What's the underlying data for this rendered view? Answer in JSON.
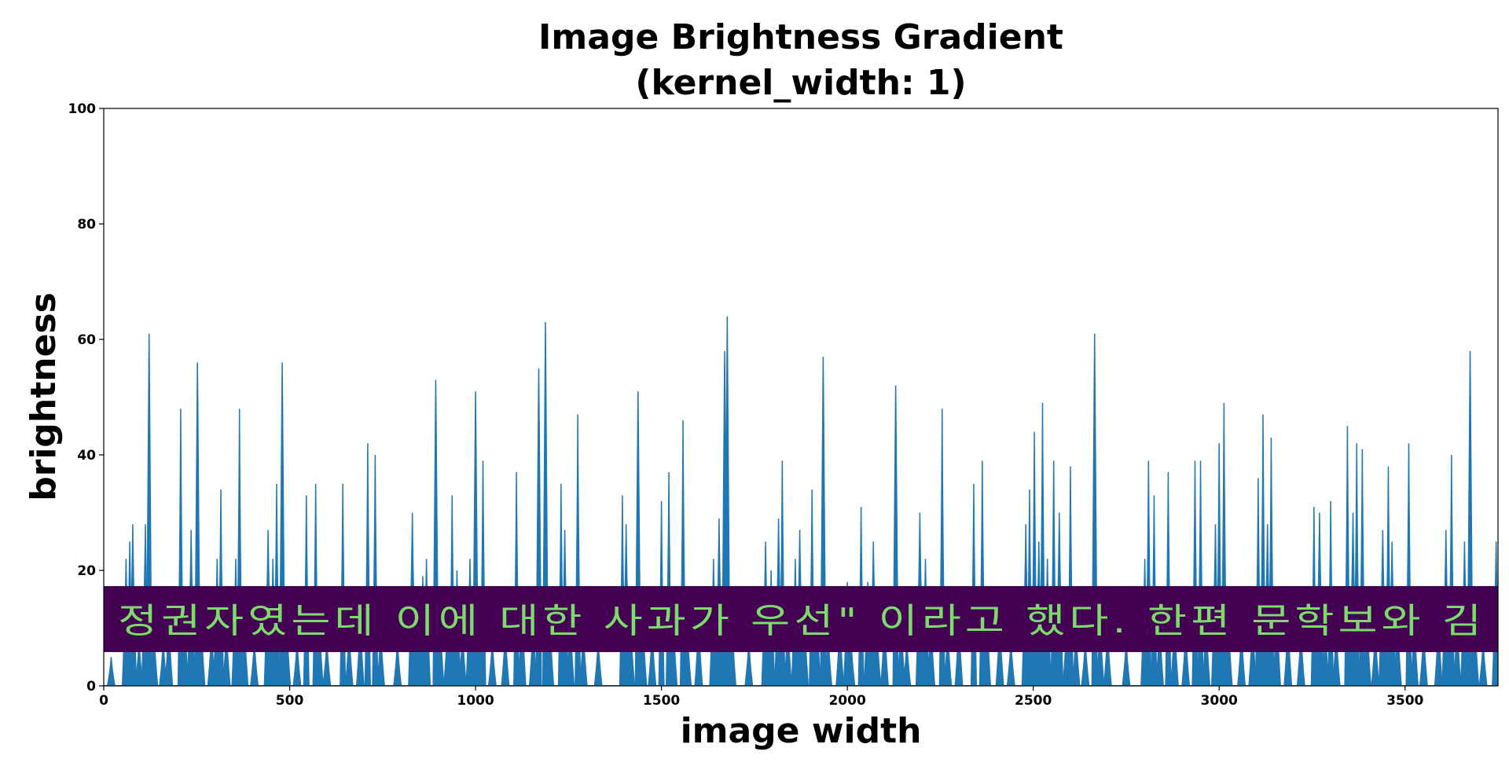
{
  "chart_data": {
    "type": "area",
    "title": [
      "Image Brightness Gradient",
      "(kernel_width: 1)"
    ],
    "xlabel": "image width",
    "ylabel": "brightness",
    "xlim": [
      0,
      3750
    ],
    "ylim": [
      0,
      100
    ],
    "xticks": [
      0,
      500,
      1000,
      1500,
      2000,
      2500,
      3000,
      3500
    ],
    "yticks": [
      0,
      20,
      40,
      60,
      80,
      100
    ],
    "grid": false,
    "series_color": "#1f77b4",
    "peaks": [
      [
        20,
        5
      ],
      [
        60,
        22
      ],
      [
        70,
        25
      ],
      [
        78,
        28
      ],
      [
        95,
        8
      ],
      [
        112,
        28
      ],
      [
        122,
        61
      ],
      [
        135,
        10
      ],
      [
        160,
        8
      ],
      [
        175,
        12
      ],
      [
        207,
        48
      ],
      [
        218,
        12
      ],
      [
        235,
        27
      ],
      [
        252,
        56
      ],
      [
        262,
        12
      ],
      [
        290,
        10
      ],
      [
        305,
        22
      ],
      [
        315,
        34
      ],
      [
        330,
        10
      ],
      [
        355,
        22
      ],
      [
        365,
        48
      ],
      [
        378,
        12
      ],
      [
        405,
        8
      ],
      [
        442,
        27
      ],
      [
        455,
        22
      ],
      [
        465,
        35
      ],
      [
        480,
        56
      ],
      [
        492,
        12
      ],
      [
        520,
        8
      ],
      [
        545,
        33
      ],
      [
        570,
        35
      ],
      [
        580,
        12
      ],
      [
        600,
        8
      ],
      [
        643,
        35
      ],
      [
        660,
        10
      ],
      [
        690,
        12
      ],
      [
        710,
        42
      ],
      [
        730,
        40
      ],
      [
        745,
        10
      ],
      [
        790,
        8
      ],
      [
        830,
        30
      ],
      [
        845,
        15
      ],
      [
        858,
        19
      ],
      [
        868,
        22
      ],
      [
        893,
        53
      ],
      [
        905,
        12
      ],
      [
        925,
        12
      ],
      [
        937,
        33
      ],
      [
        950,
        20
      ],
      [
        965,
        10
      ],
      [
        985,
        22
      ],
      [
        1000,
        51
      ],
      [
        1012,
        12
      ],
      [
        1020,
        39
      ],
      [
        1045,
        8
      ],
      [
        1080,
        10
      ],
      [
        1110,
        37
      ],
      [
        1125,
        15
      ],
      [
        1155,
        12
      ],
      [
        1170,
        55
      ],
      [
        1188,
        63
      ],
      [
        1200,
        12
      ],
      [
        1230,
        35
      ],
      [
        1240,
        27
      ],
      [
        1255,
        12
      ],
      [
        1275,
        47
      ],
      [
        1290,
        10
      ],
      [
        1330,
        8
      ],
      [
        1395,
        33
      ],
      [
        1405,
        28
      ],
      [
        1418,
        10
      ],
      [
        1437,
        51
      ],
      [
        1450,
        12
      ],
      [
        1475,
        10
      ],
      [
        1500,
        32
      ],
      [
        1520,
        37
      ],
      [
        1532,
        12
      ],
      [
        1558,
        46
      ],
      [
        1570,
        10
      ],
      [
        1600,
        12
      ],
      [
        1640,
        22
      ],
      [
        1655,
        29
      ],
      [
        1670,
        58
      ],
      [
        1677,
        64
      ],
      [
        1690,
        12
      ],
      [
        1735,
        8
      ],
      [
        1780,
        25
      ],
      [
        1795,
        20
      ],
      [
        1815,
        29
      ],
      [
        1825,
        39
      ],
      [
        1840,
        12
      ],
      [
        1860,
        22
      ],
      [
        1872,
        27
      ],
      [
        1885,
        12
      ],
      [
        1905,
        34
      ],
      [
        1918,
        15
      ],
      [
        1935,
        57
      ],
      [
        1948,
        10
      ],
      [
        1980,
        12
      ],
      [
        2000,
        18
      ],
      [
        2010,
        8
      ],
      [
        2037,
        31
      ],
      [
        2055,
        18
      ],
      [
        2070,
        25
      ],
      [
        2080,
        10
      ],
      [
        2100,
        12
      ],
      [
        2130,
        52
      ],
      [
        2145,
        12
      ],
      [
        2160,
        8
      ],
      [
        2195,
        30
      ],
      [
        2210,
        22
      ],
      [
        2225,
        12
      ],
      [
        2255,
        48
      ],
      [
        2270,
        10
      ],
      [
        2300,
        12
      ],
      [
        2340,
        35
      ],
      [
        2363,
        39
      ],
      [
        2375,
        15
      ],
      [
        2410,
        12
      ],
      [
        2440,
        8
      ],
      [
        2480,
        28
      ],
      [
        2490,
        34
      ],
      [
        2503,
        44
      ],
      [
        2515,
        25
      ],
      [
        2525,
        49
      ],
      [
        2538,
        22
      ],
      [
        2555,
        39
      ],
      [
        2570,
        30
      ],
      [
        2590,
        12
      ],
      [
        2600,
        38
      ],
      [
        2615,
        10
      ],
      [
        2640,
        8
      ],
      [
        2665,
        61
      ],
      [
        2680,
        12
      ],
      [
        2700,
        10
      ],
      [
        2750,
        8
      ],
      [
        2800,
        22
      ],
      [
        2810,
        39
      ],
      [
        2825,
        33
      ],
      [
        2840,
        12
      ],
      [
        2863,
        37
      ],
      [
        2880,
        12
      ],
      [
        2910,
        10
      ],
      [
        2935,
        39
      ],
      [
        2950,
        39
      ],
      [
        2965,
        12
      ],
      [
        2990,
        28
      ],
      [
        3000,
        42
      ],
      [
        3013,
        49
      ],
      [
        3025,
        12
      ],
      [
        3060,
        10
      ],
      [
        3090,
        12
      ],
      [
        3105,
        36
      ],
      [
        3118,
        47
      ],
      [
        3130,
        28
      ],
      [
        3140,
        43
      ],
      [
        3155,
        15
      ],
      [
        3185,
        12
      ],
      [
        3220,
        10
      ],
      [
        3255,
        31
      ],
      [
        3270,
        30
      ],
      [
        3285,
        12
      ],
      [
        3300,
        32
      ],
      [
        3315,
        10
      ],
      [
        3345,
        45
      ],
      [
        3360,
        30
      ],
      [
        3370,
        42
      ],
      [
        3385,
        41
      ],
      [
        3398,
        12
      ],
      [
        3420,
        10
      ],
      [
        3440,
        27
      ],
      [
        3455,
        38
      ],
      [
        3465,
        25
      ],
      [
        3480,
        12
      ],
      [
        3510,
        42
      ],
      [
        3525,
        12
      ],
      [
        3550,
        10
      ],
      [
        3590,
        12
      ],
      [
        3610,
        27
      ],
      [
        3625,
        40
      ],
      [
        3640,
        12
      ],
      [
        3660,
        25
      ],
      [
        3675,
        58
      ],
      [
        3688,
        12
      ],
      [
        3710,
        8
      ],
      [
        3745,
        25
      ]
    ]
  },
  "overlay": {
    "text": "정권자였는데 이에 대한 사과가 우선\" 이라고 했다. 한편 문학보와 김",
    "background": "#440154",
    "text_color": "#7CDB6A"
  }
}
